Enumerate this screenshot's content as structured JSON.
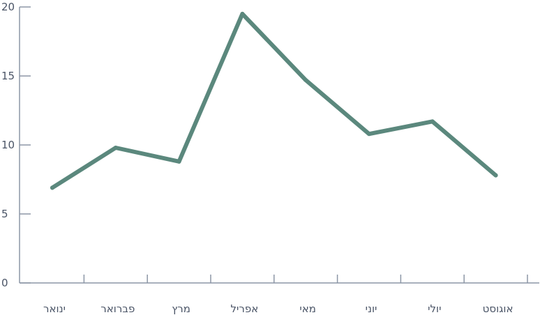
{
  "chart_data": {
    "type": "line",
    "title": "",
    "xlabel": "",
    "ylabel": "",
    "categories": [
      "ינואר",
      "פברואר",
      "מרץ",
      "אפריל",
      "מאי",
      "יוני",
      "יולי",
      "אוגוסט"
    ],
    "series": [
      {
        "values": [
          6.9,
          9.8,
          8.8,
          19.5,
          14.7,
          10.8,
          11.7,
          7.8
        ]
      }
    ],
    "ylim": [
      0,
      20
    ],
    "yticks": [
      "0",
      "5",
      "10",
      "15",
      "20"
    ],
    "grid": false,
    "legend": "none",
    "colors": {
      "line": "#5b887d",
      "axis": "#8c96a6",
      "text": "#4a5466"
    }
  }
}
